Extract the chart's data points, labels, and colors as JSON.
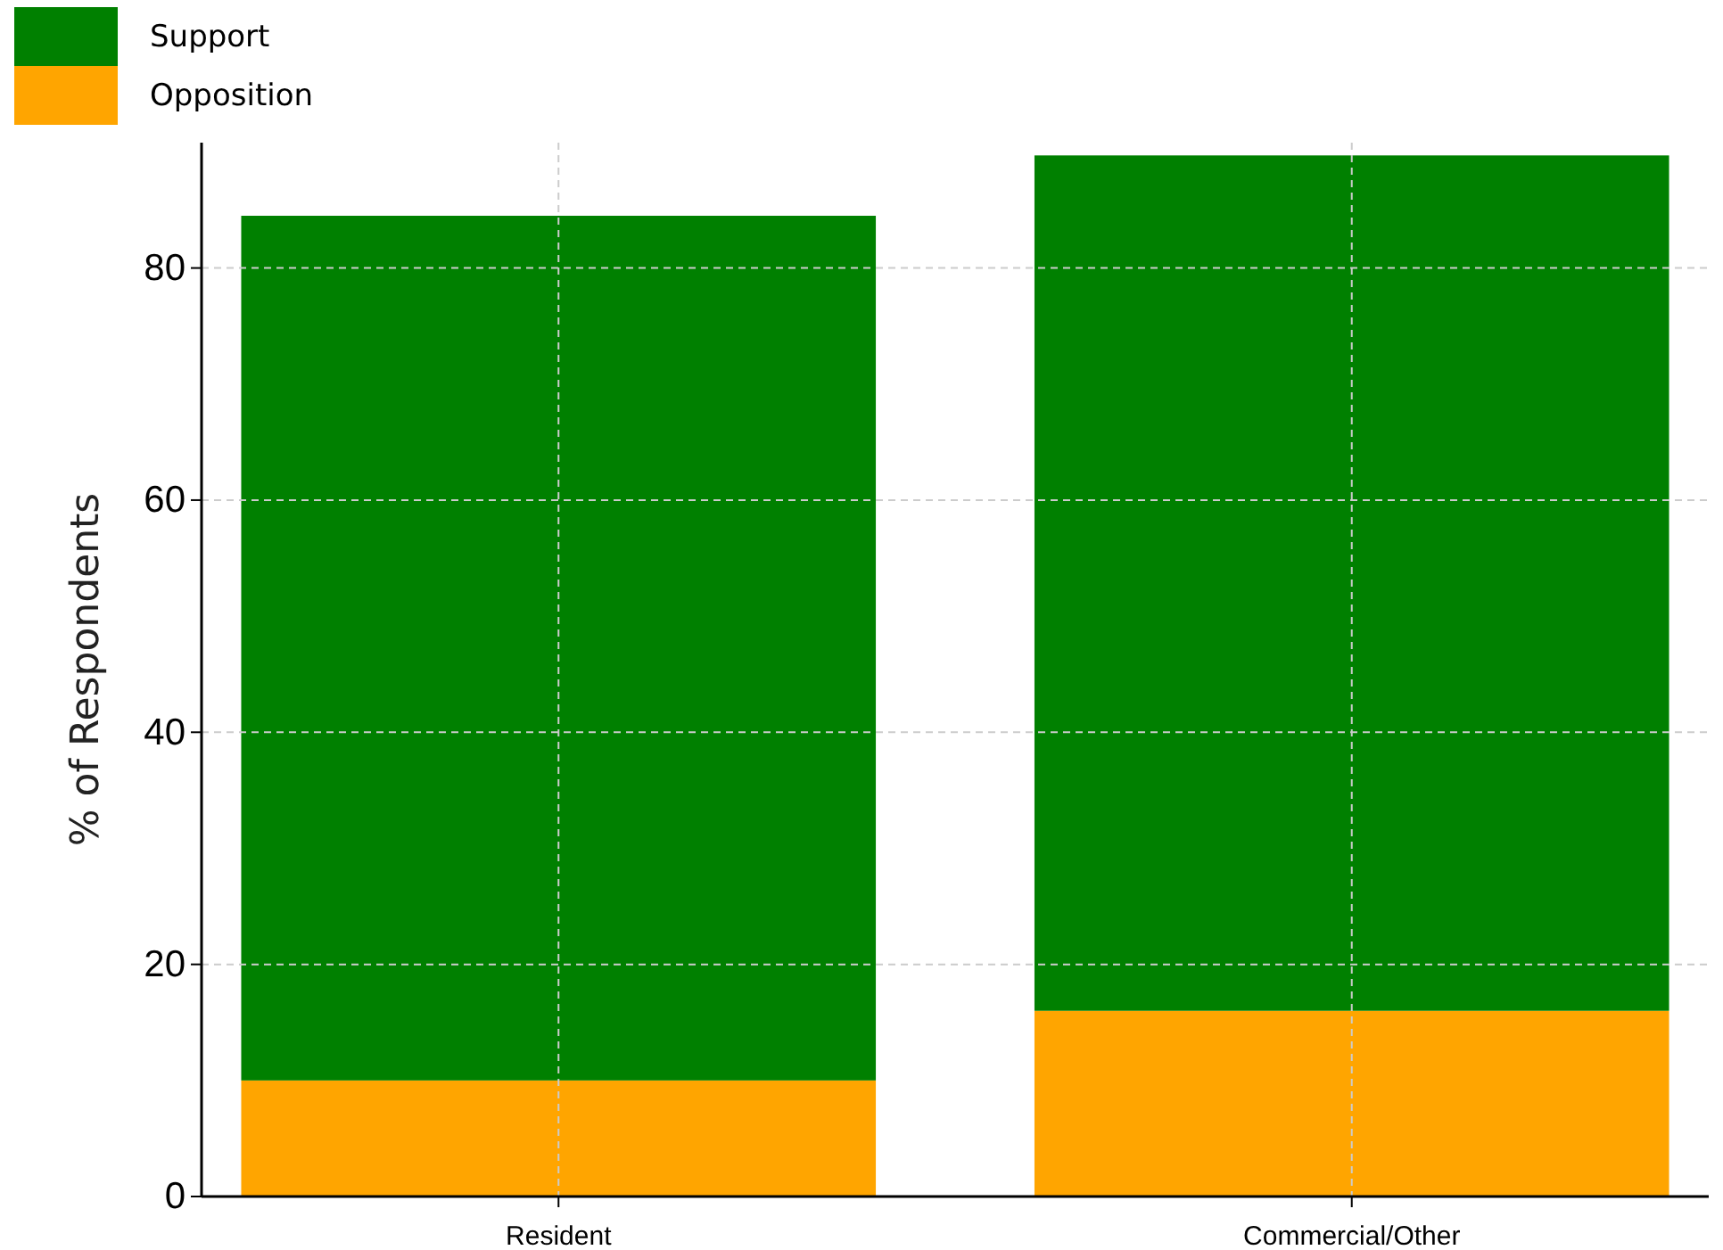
{
  "chart_data": {
    "type": "bar",
    "stacked": true,
    "ylabel": "% of Respondents",
    "categories": [
      "Resident",
      "Commercial/Other"
    ],
    "series": [
      {
        "name": "Opposition",
        "color": "#ffa500",
        "values": [
          10,
          16
        ]
      },
      {
        "name": "Support",
        "color": "#008000",
        "values": [
          74.5,
          73.7
        ]
      }
    ],
    "ylim": [
      0,
      90.8
    ],
    "yticks": [
      0,
      20,
      40,
      60,
      80
    ],
    "grid": true,
    "legend": "top left"
  }
}
